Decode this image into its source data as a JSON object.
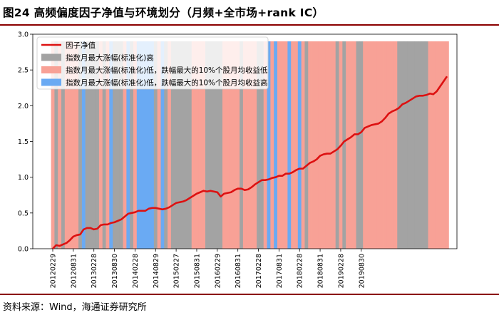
{
  "header": {
    "title": "图24 高频偏度因子净值与环境划分（月频+全市场+rank IC）"
  },
  "footer": {
    "source": "资料来源：Wind，海通证券研究所"
  },
  "colors": {
    "line": "#dd1111",
    "gray": "#a3a3a3",
    "pink": "#f8a196",
    "blue": "#6aaaf3"
  },
  "chart_data": {
    "type": "line",
    "title": "",
    "xlabel": "",
    "ylabel": "",
    "ylim": [
      0,
      3.0
    ],
    "y_ticks": [
      0.0,
      0.5,
      1.0,
      1.5,
      2.0,
      2.5,
      3.0
    ],
    "grid": false,
    "legend_position": "top-left",
    "x_tick_labels": [
      "20120229",
      "20120831",
      "20130228",
      "20130830",
      "20140228",
      "20140829",
      "20150227",
      "20150831",
      "20160229",
      "20160831",
      "20170228",
      "20170831",
      "20180228",
      "20180831",
      "20190228",
      "20190830"
    ],
    "legend": [
      {
        "key": "line",
        "label": "因子净值"
      },
      {
        "key": "gray",
        "label": "指数月最大涨幅(标准化)高"
      },
      {
        "key": "pink",
        "label": "指数月最大涨幅(标准化)低，跌幅最大的10%个股月均收益低"
      },
      {
        "key": "blue",
        "label": "指数月最大涨幅(标准化)低，跌幅最大的10%个股月均收益高"
      }
    ],
    "regimes": [
      "pink",
      "gray",
      "pink",
      "gray",
      "pink",
      "pink",
      "pink",
      "pink",
      "gray",
      "blue",
      "gray",
      "gray",
      "gray",
      "gray",
      "pink",
      "gray",
      "pink",
      "blue",
      "gray",
      "gray",
      "gray",
      "pink",
      "blue",
      "gray",
      "pink",
      "blue",
      "blue",
      "blue",
      "blue",
      "blue",
      "gray",
      "pink",
      "blue",
      "gray",
      "pink",
      "gray",
      "gray",
      "gray",
      "gray",
      "gray",
      "gray",
      "pink",
      "pink",
      "pink",
      "pink",
      "gray",
      "gray",
      "gray",
      "gray",
      "gray",
      "pink",
      "pink",
      "pink",
      "pink",
      "pink",
      "gray",
      "pink",
      "pink",
      "pink",
      "pink",
      "gray",
      "gray",
      "pink",
      "blue",
      "pink",
      "blue",
      "pink",
      "pink",
      "pink",
      "blue",
      "pink",
      "pink",
      "blue",
      "pink",
      "gray",
      "pink",
      "pink",
      "pink",
      "pink",
      "pink",
      "pink",
      "pink",
      "pink",
      "gray",
      "pink",
      "gray",
      "pink",
      "pink",
      "pink",
      "gray",
      "gray",
      "pink",
      "pink",
      "pink",
      "pink",
      "pink",
      "pink",
      "pink",
      "pink",
      "pink",
      "pink",
      "gray",
      "gray",
      "gray",
      "gray",
      "gray",
      "gray",
      "gray",
      "gray",
      "gray",
      "pink",
      "pink",
      "pink",
      "pink",
      "pink",
      "pink"
    ],
    "series": [
      {
        "values": [
          0.0,
          0.05,
          0.04,
          0.06,
          0.08,
          0.12,
          0.17,
          0.19,
          0.2,
          0.27,
          0.29,
          0.29,
          0.27,
          0.28,
          0.33,
          0.34,
          0.34,
          0.36,
          0.37,
          0.39,
          0.41,
          0.45,
          0.49,
          0.5,
          0.51,
          0.53,
          0.53,
          0.53,
          0.56,
          0.57,
          0.57,
          0.56,
          0.55,
          0.56,
          0.58,
          0.61,
          0.64,
          0.65,
          0.66,
          0.68,
          0.71,
          0.74,
          0.77,
          0.79,
          0.81,
          0.8,
          0.81,
          0.8,
          0.79,
          0.73,
          0.77,
          0.78,
          0.79,
          0.82,
          0.84,
          0.84,
          0.82,
          0.83,
          0.86,
          0.9,
          0.93,
          0.96,
          0.96,
          0.97,
          0.99,
          1.0,
          1.02,
          1.02,
          1.05,
          1.05,
          1.07,
          1.1,
          1.12,
          1.12,
          1.16,
          1.2,
          1.22,
          1.25,
          1.3,
          1.32,
          1.33,
          1.33,
          1.36,
          1.39,
          1.44,
          1.5,
          1.53,
          1.56,
          1.6,
          1.6,
          1.63,
          1.69,
          1.71,
          1.73,
          1.74,
          1.75,
          1.78,
          1.83,
          1.89,
          1.92,
          1.94,
          1.97,
          2.02,
          2.04,
          2.07,
          2.1,
          2.13,
          2.14,
          2.14,
          2.15,
          2.17,
          2.16,
          2.2,
          2.27,
          2.34,
          2.41
        ]
      }
    ]
  }
}
